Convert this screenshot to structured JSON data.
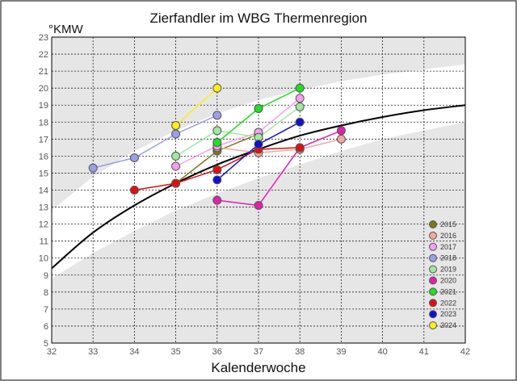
{
  "chart_data": {
    "type": "line",
    "title": "Zierfandler im WBG Thermenregion",
    "xlabel": "Kalenderwoche",
    "ylabel": "°KMW",
    "xlim": [
      32,
      42
    ],
    "ylim": [
      5,
      23
    ],
    "x_ticks": [
      32,
      33,
      34,
      35,
      36,
      37,
      38,
      39,
      40,
      41,
      42
    ],
    "y_ticks": [
      5,
      6,
      7,
      8,
      9,
      10,
      11,
      12,
      13,
      14,
      15,
      16,
      17,
      18,
      19,
      20,
      21,
      22,
      23
    ],
    "grid": true,
    "legend_position": "bottom-right",
    "reference_curve": [
      [
        32,
        9.4
      ],
      [
        33,
        11.5
      ],
      [
        34,
        13.1
      ],
      [
        35,
        14.4
      ],
      [
        36,
        15.5
      ],
      [
        37,
        16.4
      ],
      [
        38,
        17.2
      ],
      [
        39,
        17.8
      ],
      [
        40,
        18.3
      ],
      [
        41,
        18.7
      ],
      [
        42,
        19.0
      ]
    ],
    "band_lower": {
      "lower": [
        [
          32,
          6.9
        ],
        [
          33,
          8.3
        ],
        [
          34,
          9.6
        ],
        [
          35,
          10.8
        ],
        [
          36,
          11.8
        ],
        [
          37,
          12.8
        ],
        [
          38,
          13.7
        ],
        [
          39,
          14.6
        ],
        [
          40,
          15.3
        ],
        [
          41,
          16.0
        ],
        [
          42,
          16.5
        ]
      ],
      "upper": [
        [
          32,
          8.8
        ],
        [
          33,
          10.3
        ],
        [
          34,
          11.6
        ],
        [
          35,
          12.8
        ],
        [
          36,
          13.8
        ],
        [
          37,
          14.7
        ],
        [
          38,
          15.5
        ],
        [
          39,
          16.3
        ],
        [
          40,
          17.0
        ],
        [
          41,
          17.5
        ],
        [
          42,
          18.0
        ]
      ]
    },
    "band_upper": {
      "lower": [
        [
          32,
          12.8
        ],
        [
          33,
          14.8
        ],
        [
          34,
          16.3
        ],
        [
          35,
          17.5
        ],
        [
          36,
          18.5
        ],
        [
          37,
          19.3
        ],
        [
          38,
          19.9
        ],
        [
          39,
          20.4
        ],
        [
          40,
          20.8
        ],
        [
          41,
          21.1
        ],
        [
          42,
          21.4
        ]
      ],
      "upper": [
        [
          32,
          23
        ],
        [
          33,
          23
        ],
        [
          34,
          23
        ],
        [
          35,
          23
        ],
        [
          36,
          23
        ],
        [
          37,
          23
        ],
        [
          38,
          23
        ],
        [
          39,
          23
        ],
        [
          40,
          23
        ],
        [
          41,
          23
        ],
        [
          42,
          23
        ]
      ]
    },
    "series": [
      {
        "name": "2015",
        "color": "#7a7a1a",
        "points": [
          [
            35,
            14.4
          ],
          [
            36,
            16.3
          ],
          [
            37,
            17.3
          ]
        ]
      },
      {
        "name": "2016",
        "color": "#f0a8a0",
        "points": [
          [
            36,
            16.5
          ],
          [
            37,
            16.2
          ],
          [
            38,
            16.4
          ],
          [
            39,
            17.0
          ]
        ]
      },
      {
        "name": "2017",
        "color": "#f4a0f0",
        "points": [
          [
            35,
            15.4
          ],
          [
            36,
            16.6
          ],
          [
            37,
            17.4
          ],
          [
            38,
            19.4
          ]
        ]
      },
      {
        "name": "2018",
        "color": "#9aa0e8",
        "points": [
          [
            33,
            15.3
          ],
          [
            34,
            15.9
          ],
          [
            35,
            17.3
          ],
          [
            36,
            18.4
          ]
        ]
      },
      {
        "name": "2019",
        "color": "#a0e8a0",
        "points": [
          [
            35,
            16.0
          ],
          [
            36,
            17.5
          ],
          [
            37,
            17.1
          ],
          [
            38,
            18.9
          ]
        ]
      },
      {
        "name": "2020",
        "color": "#e020b0",
        "points": [
          [
            36,
            13.4
          ],
          [
            37,
            13.1
          ],
          [
            38,
            16.5
          ],
          [
            39,
            17.5
          ]
        ]
      },
      {
        "name": "2021",
        "color": "#20e020",
        "points": [
          [
            36,
            16.8
          ],
          [
            37,
            18.8
          ],
          [
            38,
            20.0
          ]
        ]
      },
      {
        "name": "2022",
        "color": "#e01010",
        "points": [
          [
            34,
            14.0
          ],
          [
            35,
            14.4
          ],
          [
            36,
            15.2
          ],
          [
            37,
            16.4
          ],
          [
            38,
            16.5
          ]
        ]
      },
      {
        "name": "2023",
        "color": "#1010d0",
        "points": [
          [
            36,
            14.6
          ],
          [
            37,
            16.7
          ],
          [
            38,
            18.0
          ]
        ]
      },
      {
        "name": "2024",
        "color": "#ffee10",
        "points": [
          [
            35,
            17.8
          ],
          [
            36,
            20.0
          ]
        ]
      }
    ]
  }
}
